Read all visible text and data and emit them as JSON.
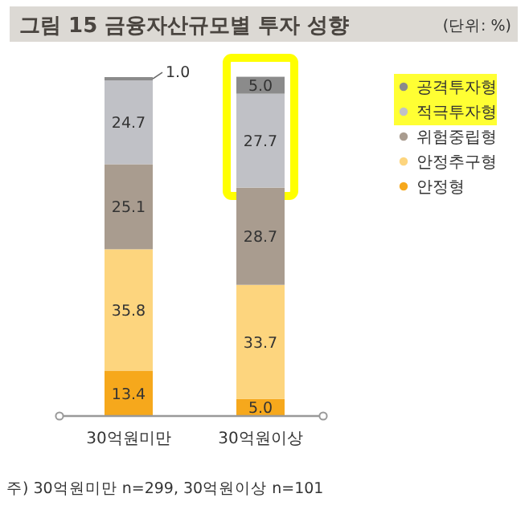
{
  "chart_data": {
    "type": "bar",
    "title": "그림 15  금융자산규모별 투자 성향",
    "subtitle": "(단위: %)",
    "categories": [
      "30억원미만",
      "30억원이상"
    ],
    "stacked": true,
    "legend": "top right",
    "series": [
      {
        "name": "안정형",
        "color": "#f6a81c",
        "values": [
          13.4,
          5.0
        ],
        "value_labels": [
          "13.4",
          "5.0"
        ]
      },
      {
        "name": "안정추구형",
        "color": "#fdd57e",
        "values": [
          35.8,
          33.7
        ],
        "value_labels": [
          "35.8",
          "33.7"
        ]
      },
      {
        "name": "위험중립형",
        "color": "#a99c8f",
        "values": [
          25.1,
          28.7
        ],
        "value_labels": [
          "25.1",
          "28.7"
        ]
      },
      {
        "name": "적극투자형",
        "color": "#c0c1c6",
        "values": [
          24.7,
          27.7
        ],
        "value_labels": [
          "24.7",
          "27.7"
        ]
      },
      {
        "name": "공격투자형",
        "color": "#8b8b8b",
        "values": [
          1.0,
          5.0
        ],
        "value_labels": [
          "1.0",
          "5.0"
        ]
      }
    ],
    "annotations": [
      "주) 30억원미만 n=299, 30억원이상 n=101"
    ]
  }
}
